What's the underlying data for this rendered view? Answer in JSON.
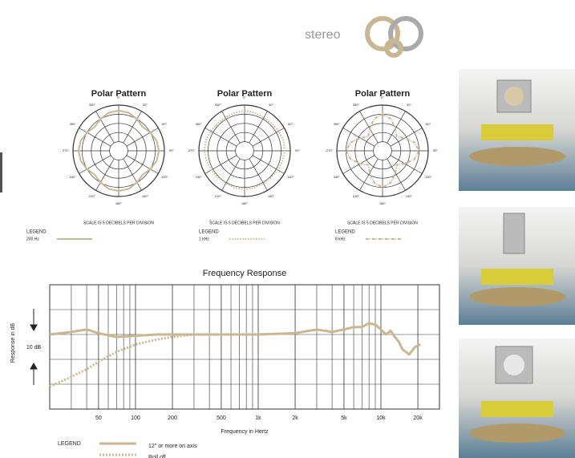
{
  "brand": {
    "label": "stereo"
  },
  "chart_data": [
    {
      "type": "polar",
      "title": "Polar Pattern",
      "note": "SCALE IS 5 DECIBELS PER DIVISION",
      "legend_title": "LEGEND",
      "angles": [
        0,
        15,
        30,
        45,
        60,
        75,
        90,
        105,
        120,
        135,
        150,
        165,
        180,
        195,
        210,
        225,
        240,
        255,
        270,
        285,
        300,
        315,
        330,
        345
      ],
      "angle_ticks": [
        {
          "value": 0,
          "label": "0°"
        },
        {
          "value": 30,
          "label": "30°"
        },
        {
          "value": 60,
          "label": "60°"
        },
        {
          "value": 90,
          "label": "90°"
        },
        {
          "value": 120,
          "label": "120°"
        },
        {
          "value": 150,
          "label": "150°"
        },
        {
          "value": 180,
          "label": "180°"
        },
        {
          "value": 210,
          "label": "210°"
        },
        {
          "value": 240,
          "label": "240°"
        },
        {
          "value": 270,
          "label": "270°"
        },
        {
          "value": 300,
          "label": "300°"
        },
        {
          "value": 330,
          "label": "330°"
        }
      ],
      "rlim": [
        -25,
        0
      ],
      "rgrid": [
        -20,
        -15,
        -10,
        -5,
        0
      ],
      "series": [
        {
          "name": "200 Hz",
          "color": "#c9b793",
          "style": "solid",
          "values": [
            -3,
            -3.5,
            -5,
            -6.5,
            -5,
            -3.5,
            -3,
            -3.5,
            -5,
            -6.5,
            -5,
            -3.5,
            -3,
            -3.5,
            -5,
            -6.5,
            -5,
            -3.5,
            -3,
            -3.5,
            -5,
            -6.5,
            -5,
            -3.5
          ]
        }
      ]
    },
    {
      "type": "polar",
      "title": "Polar Pattern",
      "note": "SCALE IS 5 DECIBELS PER DIVISION",
      "legend_title": "LEGEND",
      "angles": [
        0,
        15,
        30,
        45,
        60,
        75,
        90,
        105,
        120,
        135,
        150,
        165,
        180,
        195,
        210,
        225,
        240,
        255,
        270,
        285,
        300,
        315,
        330,
        345
      ],
      "angle_ticks": [
        {
          "value": 0,
          "label": "0°"
        },
        {
          "value": 30,
          "label": "30°"
        },
        {
          "value": 60,
          "label": "60°"
        },
        {
          "value": 90,
          "label": "90°"
        },
        {
          "value": 120,
          "label": "120°"
        },
        {
          "value": 150,
          "label": "150°"
        },
        {
          "value": 180,
          "label": "180°"
        },
        {
          "value": 210,
          "label": "210°"
        },
        {
          "value": 240,
          "label": "240°"
        },
        {
          "value": 270,
          "label": "270°"
        },
        {
          "value": 300,
          "label": "300°"
        },
        {
          "value": 330,
          "label": "330°"
        }
      ],
      "rlim": [
        -25,
        0
      ],
      "rgrid": [
        -20,
        -15,
        -10,
        -5,
        0
      ],
      "series": [
        {
          "name": "1 kHz",
          "color": "#c9b793",
          "style": "dotted",
          "values": [
            -3,
            -3.5,
            -4,
            -4,
            -3.5,
            -3,
            -3,
            -3.5,
            -4,
            -4.5,
            -4.5,
            -4,
            -4,
            -4,
            -4.5,
            -4.5,
            -4,
            -3.5,
            -3,
            -3,
            -3.5,
            -4,
            -4,
            -3.5
          ]
        }
      ]
    },
    {
      "type": "polar",
      "title": "Polar Pattern",
      "note": "SCALE IS 5 DECIBELS PER DIVISION",
      "legend_title": "LEGEND",
      "angles": [
        0,
        15,
        30,
        45,
        60,
        75,
        90,
        105,
        120,
        135,
        150,
        165,
        180,
        195,
        210,
        225,
        240,
        255,
        270,
        285,
        300,
        315,
        330,
        345
      ],
      "angle_ticks": [
        {
          "value": 0,
          "label": "0°"
        },
        {
          "value": 30,
          "label": "30°"
        },
        {
          "value": 60,
          "label": "60°"
        },
        {
          "value": 90,
          "label": "90°"
        },
        {
          "value": 120,
          "label": "120°"
        },
        {
          "value": 150,
          "label": "150°"
        },
        {
          "value": 180,
          "label": "180°"
        },
        {
          "value": 210,
          "label": "210°"
        },
        {
          "value": 240,
          "label": "240°"
        },
        {
          "value": 270,
          "label": "270°"
        },
        {
          "value": 300,
          "label": "300°"
        },
        {
          "value": 330,
          "label": "330°"
        }
      ],
      "rlim": [
        -25,
        0
      ],
      "rgrid": [
        -20,
        -15,
        -10,
        -5,
        0
      ],
      "series": [
        {
          "name": "8 kHz",
          "color": "#c9b793",
          "style": "dashdot",
          "values": [
            -5,
            -7,
            -11,
            -14,
            -11,
            -7,
            -5,
            -7,
            -11,
            -14,
            -11,
            -7,
            -5,
            -7,
            -11,
            -14,
            -11,
            -7,
            -5,
            -7,
            -11,
            -14,
            -11,
            -7
          ]
        }
      ]
    },
    {
      "type": "line",
      "title": "Frequency Response",
      "x_label": "Frequency in Hertz",
      "y_label": "Response in dB",
      "annotation": "10 dB",
      "legend_title": "LEGEND",
      "log_x": true,
      "xlim": [
        20,
        30000
      ],
      "xticks": [
        50,
        100,
        200,
        500,
        {
          "value": 1000,
          "label": "1k"
        },
        {
          "value": 2000,
          "label": "2k"
        },
        {
          "value": 5000,
          "label": "5k"
        },
        {
          "value": 10000,
          "label": "10k"
        },
        {
          "value": 20000,
          "label": "20k"
        }
      ],
      "xgrid_minor": [
        30,
        40,
        60,
        70,
        80,
        90,
        300,
        400,
        600,
        700,
        800,
        900,
        3000,
        4000,
        6000,
        7000,
        8000,
        9000
      ],
      "ylim": [
        -30,
        20
      ],
      "ygrid": [
        -20,
        -10,
        0,
        10
      ],
      "x": [
        20,
        30,
        40,
        50,
        70,
        100,
        150,
        200,
        300,
        500,
        1000,
        2000,
        3000,
        4000,
        5000,
        6000,
        7000,
        8000,
        9000,
        10000,
        11000,
        12000,
        13000,
        14000,
        15000,
        17000,
        19000,
        21000
      ],
      "series": [
        {
          "name": "12\" or more on axis",
          "color": "#c9b793",
          "style": "solid",
          "values": [
            0,
            1,
            2,
            0.5,
            -1,
            -0.5,
            0,
            0,
            0,
            0,
            0,
            0.5,
            2,
            1,
            2,
            3,
            3,
            4.5,
            4,
            2,
            0,
            1.5,
            -1,
            -3,
            -6,
            -8,
            -5,
            -4
          ]
        },
        {
          "name": "Roll off",
          "color": "#c9b793",
          "style": "dotted",
          "values": [
            -21,
            -17,
            -14,
            -11,
            -7,
            -4,
            -2,
            -1,
            0,
            null,
            null,
            null,
            null,
            null,
            null,
            null,
            null,
            null,
            null,
            null,
            null,
            null,
            null,
            null,
            null,
            null,
            null,
            null
          ]
        }
      ]
    }
  ]
}
